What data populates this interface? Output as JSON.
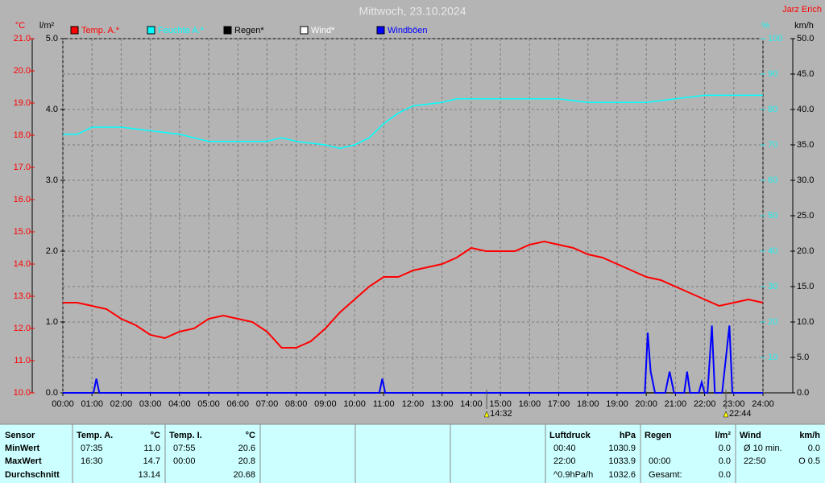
{
  "chart_data": {
    "type": "line",
    "title": "Mittwoch, 23.10.2024",
    "author": "Jarz Erich",
    "xlim": [
      0,
      24
    ],
    "xticks": [
      {
        "value": 0,
        "label": "00:00"
      },
      {
        "value": 1,
        "label": "01:00"
      },
      {
        "value": 2,
        "label": "02:00"
      },
      {
        "value": 3,
        "label": "03:00"
      },
      {
        "value": 4,
        "label": "04:00"
      },
      {
        "value": 5,
        "label": "05:00"
      },
      {
        "value": 6,
        "label": "06:00"
      },
      {
        "value": 7,
        "label": "07:00"
      },
      {
        "value": 8,
        "label": "08:00"
      },
      {
        "value": 9,
        "label": "09:00"
      },
      {
        "value": 10,
        "label": "10:00"
      },
      {
        "value": 11,
        "label": "11:00"
      },
      {
        "value": 12,
        "label": "12:00"
      },
      {
        "value": 13,
        "label": "13:00"
      },
      {
        "value": 14,
        "label": "14:00"
      },
      {
        "value": 15,
        "label": "15:00"
      },
      {
        "value": 16,
        "label": "16:00"
      },
      {
        "value": 17,
        "label": "17:00"
      },
      {
        "value": 18,
        "label": "18:00"
      },
      {
        "value": 19,
        "label": "19:00"
      },
      {
        "value": 20,
        "label": "20:00"
      },
      {
        "value": 21,
        "label": "21:00"
      },
      {
        "value": 22,
        "label": "22:00"
      },
      {
        "value": 23,
        "label": "23:00"
      },
      {
        "value": 24,
        "label": "24:00"
      }
    ],
    "ylabel": "°C",
    "ylim": [
      10,
      21
    ],
    "yticks": [
      {
        "value": 10,
        "label": "10.0"
      },
      {
        "value": 11,
        "label": "11.0"
      },
      {
        "value": 12,
        "label": "12.0"
      },
      {
        "value": 13,
        "label": "13.0"
      },
      {
        "value": 14,
        "label": "14.0"
      },
      {
        "value": 15,
        "label": "15.0"
      },
      {
        "value": 16,
        "label": "16.0"
      },
      {
        "value": 17,
        "label": "17.0"
      },
      {
        "value": 18,
        "label": "18.0"
      },
      {
        "value": 19,
        "label": "19.0"
      },
      {
        "value": 20,
        "label": "20.0"
      },
      {
        "value": 21,
        "label": "21.0"
      }
    ],
    "y2label": "l/m²",
    "y2lim": [
      0,
      5
    ],
    "y2ticks": [
      {
        "value": 0,
        "label": "0.0"
      },
      {
        "value": 1,
        "label": "1.0"
      },
      {
        "value": 2,
        "label": "2.0"
      },
      {
        "value": 3,
        "label": "3.0"
      },
      {
        "value": 4,
        "label": "4.0"
      },
      {
        "value": 5,
        "label": "5.0"
      }
    ],
    "y3label": "%",
    "y3lim": [
      0,
      100
    ],
    "y3ticks": [
      10,
      20,
      30,
      40,
      50,
      60,
      70,
      80,
      90,
      100
    ],
    "y4label": "km/h",
    "y4lim": [
      0,
      50
    ],
    "y4ticks": [
      {
        "value": 0,
        "label": "0.0"
      },
      {
        "value": 5,
        "label": "5.0"
      },
      {
        "value": 10,
        "label": "10.0"
      },
      {
        "value": 15,
        "label": "15.0"
      },
      {
        "value": 20,
        "label": "20.0"
      },
      {
        "value": 25,
        "label": "25.0"
      },
      {
        "value": 30,
        "label": "30.0"
      },
      {
        "value": 35,
        "label": "35.0"
      },
      {
        "value": 40,
        "label": "40.0"
      },
      {
        "value": 45,
        "label": "45.0"
      },
      {
        "value": 50,
        "label": "50.0"
      }
    ],
    "grid": true,
    "series": [
      {
        "name": "Temp. A.*",
        "color": "#ff0000",
        "axis": "y",
        "x": [
          0,
          0.5,
          1,
          1.5,
          2,
          2.5,
          3,
          3.5,
          4,
          4.5,
          5,
          5.5,
          6,
          6.5,
          7,
          7.5,
          8,
          8.5,
          9,
          9.5,
          10,
          10.5,
          11,
          11.5,
          12,
          12.5,
          13,
          13.5,
          14,
          14.5,
          15,
          15.5,
          16,
          16.5,
          17,
          17.5,
          18,
          18.5,
          19,
          19.5,
          20,
          20.5,
          21,
          21.5,
          22,
          22.5,
          23,
          23.5,
          24
        ],
        "values": [
          12.8,
          12.8,
          12.7,
          12.6,
          12.3,
          12.1,
          11.8,
          11.7,
          11.9,
          12.0,
          12.3,
          12.4,
          12.3,
          12.2,
          11.9,
          11.4,
          11.4,
          11.6,
          12.0,
          12.5,
          12.9,
          13.3,
          13.6,
          13.6,
          13.8,
          13.9,
          14.0,
          14.2,
          14.5,
          14.4,
          14.4,
          14.4,
          14.6,
          14.7,
          14.6,
          14.5,
          14.3,
          14.2,
          14.0,
          13.8,
          13.6,
          13.5,
          13.3,
          13.1,
          12.9,
          12.7,
          12.8,
          12.9,
          12.8
        ]
      },
      {
        "name": "Feuchte A.*",
        "color": "#00ffff",
        "axis": "y3",
        "x": [
          0,
          0.5,
          1,
          2,
          3,
          4,
          5,
          6,
          7,
          7.5,
          8,
          9,
          9.5,
          10,
          10.5,
          11,
          11.5,
          12,
          13,
          13.5,
          14,
          15,
          16,
          17,
          18,
          19,
          20,
          21,
          22,
          23,
          24
        ],
        "values": [
          73,
          73,
          75,
          75,
          74,
          73,
          71,
          71,
          71,
          72,
          71,
          70,
          69,
          70,
          72,
          76,
          79,
          81,
          82,
          83,
          83,
          83,
          83,
          83,
          82,
          82,
          82,
          83,
          84,
          84,
          84
        ]
      },
      {
        "name": "Regen*",
        "color": "#000000",
        "axis": "y2",
        "x": [
          0,
          24
        ],
        "values": [
          0,
          0
        ]
      },
      {
        "name": "Wind*",
        "color": "#ffffff",
        "axis": "y4",
        "x": [
          0,
          24
        ],
        "values": [
          0,
          0
        ]
      },
      {
        "name": "Windböen",
        "color": "#0000ff",
        "axis": "y4",
        "x": [
          0,
          1.05,
          1.15,
          1.25,
          10.85,
          10.95,
          11.05,
          19.95,
          20.05,
          20.15,
          20.3,
          20.65,
          20.8,
          20.95,
          21.3,
          21.4,
          21.5,
          21.8,
          21.9,
          22.0,
          22.1,
          22.25,
          22.35,
          22.6,
          22.85,
          22.95,
          23.1,
          24
        ],
        "values": [
          0,
          0,
          2,
          0,
          0,
          2,
          0,
          0,
          8.5,
          3,
          0,
          0,
          3,
          0,
          0,
          3,
          0,
          0,
          1.5,
          0,
          0,
          9.5,
          0,
          0,
          9.5,
          0,
          0,
          0
        ]
      }
    ],
    "annotations": [
      {
        "x": 14.53,
        "label": "14:32"
      },
      {
        "x": 22.73,
        "label": "22:44"
      }
    ]
  },
  "table": {
    "row_header": "Sensor",
    "row_labels": [
      "MinWert",
      "MaxWert",
      "Durchschnitt"
    ],
    "sections": [
      {
        "name": "Temp. A.",
        "unit": "°C",
        "rows": [
          {
            "time": "07:35",
            "value": "11.0"
          },
          {
            "time": "16:30",
            "value": "14.7"
          },
          {
            "value": "13.14"
          }
        ]
      },
      {
        "name": "Temp. I.",
        "unit": "°C",
        "rows": [
          {
            "time": "07:55",
            "value": "20.6"
          },
          {
            "time": "00:00",
            "value": "20.8"
          },
          {
            "value": "20.68"
          }
        ]
      },
      {
        "name": "Luftdruck",
        "unit": "hPa",
        "rows": [
          {
            "time": "00:40",
            "value": "1030.9"
          },
          {
            "time": "22:00",
            "value": "1033.9"
          },
          {
            "time": "^0.9hPa/h",
            "value": "1032.6"
          }
        ]
      },
      {
        "name": "Regen",
        "unit": "l/m²",
        "rows": [
          {
            "value": "0.0"
          },
          {
            "time": "00:00",
            "value": "0.0"
          },
          {
            "time": "Gesamt:",
            "value": "0.0"
          }
        ]
      },
      {
        "name": "Wind",
        "unit": "km/h",
        "rows": [
          {
            "time": "Ø 10 min.",
            "value": "0.0"
          },
          {
            "time": "22:50",
            "value": "O 0.5"
          }
        ]
      }
    ]
  }
}
